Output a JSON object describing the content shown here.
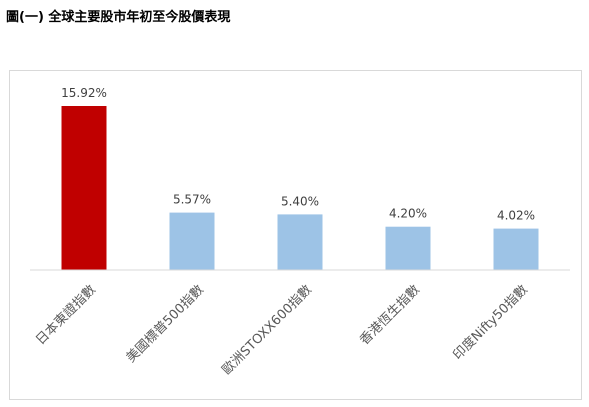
{
  "figure": {
    "title": "圖(一) 全球主要股市年初至今股價表現"
  },
  "chart_data": {
    "type": "bar",
    "title": "",
    "xlabel": "",
    "ylabel": "",
    "categories": [
      "日本東證指數",
      "美國標普500指數",
      "歐洲STOXX600指數",
      "香港恆生指數",
      "印度Nifty50指數"
    ],
    "values": [
      15.92,
      5.57,
      5.4,
      4.2,
      4.02
    ],
    "data_labels": [
      "15.92%",
      "5.57%",
      "5.40%",
      "4.20%",
      "4.02%"
    ],
    "unit": "%",
    "ylim": [
      0,
      16
    ],
    "grid": false,
    "legend": "none",
    "colors": {
      "highlight": "#c00000",
      "default": "#9dc3e6",
      "axis": "#d9d9d9",
      "label": "#404040"
    },
    "highlight_index": 0
  }
}
